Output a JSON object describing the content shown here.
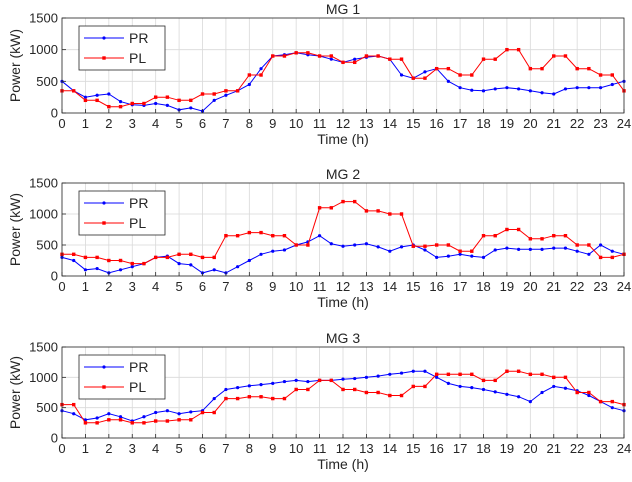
{
  "figure": {
    "colors": {
      "PR": "#0000ff",
      "PL": "#ff0000",
      "axis": "#262626",
      "grid": "#d9d9d9"
    }
  },
  "chart_data": [
    {
      "type": "line",
      "title": "MG 1",
      "xlabel": "Time (h)",
      "ylabel": "Power (kW)",
      "xlim": [
        0,
        24
      ],
      "ylim": [
        0,
        1500
      ],
      "xticks": [
        "0",
        "1",
        "2",
        "3",
        "4",
        "5",
        "6",
        "7",
        "8",
        "9",
        "10",
        "11",
        "12",
        "13",
        "14",
        "15",
        "16",
        "17",
        "18",
        "19",
        "20",
        "21",
        "22",
        "23",
        "24"
      ],
      "yticks": [
        "0",
        "500",
        "1000",
        "1500"
      ],
      "grid": true,
      "legend": "top-left",
      "x": [
        0,
        0.5,
        1,
        1.5,
        2,
        2.5,
        3,
        3.5,
        4,
        4.5,
        5,
        5.5,
        6,
        6.5,
        7,
        7.5,
        8,
        8.5,
        9,
        9.5,
        10,
        10.5,
        11,
        11.5,
        12,
        12.5,
        13,
        13.5,
        14,
        14.5,
        15,
        15.5,
        16,
        16.5,
        17,
        17.5,
        18,
        18.5,
        19,
        19.5,
        20,
        20.5,
        21,
        21.5,
        22,
        22.5,
        23,
        23.5,
        24
      ],
      "series": [
        {
          "name": "PR",
          "values": [
            500,
            350,
            250,
            280,
            300,
            180,
            130,
            120,
            150,
            120,
            50,
            80,
            30,
            200,
            280,
            350,
            450,
            700,
            900,
            920,
            950,
            920,
            900,
            850,
            800,
            850,
            880,
            900,
            850,
            600,
            550,
            650,
            700,
            500,
            400,
            360,
            350,
            380,
            400,
            380,
            350,
            320,
            300,
            380,
            400,
            400,
            400,
            450,
            500
          ]
        },
        {
          "name": "PL",
          "values": [
            350,
            350,
            200,
            200,
            100,
            100,
            150,
            150,
            250,
            250,
            200,
            200,
            300,
            300,
            350,
            350,
            600,
            600,
            900,
            900,
            950,
            950,
            900,
            900,
            800,
            800,
            900,
            900,
            850,
            850,
            550,
            550,
            700,
            700,
            600,
            600,
            850,
            850,
            1000,
            1000,
            700,
            700,
            900,
            900,
            700,
            700,
            600,
            600,
            350
          ]
        }
      ]
    },
    {
      "type": "line",
      "title": "MG 2",
      "xlabel": "Time (h)",
      "ylabel": "Power (kW)",
      "xlim": [
        0,
        24
      ],
      "ylim": [
        0,
        1500
      ],
      "xticks": [
        "0",
        "1",
        "2",
        "3",
        "4",
        "5",
        "6",
        "7",
        "8",
        "9",
        "10",
        "11",
        "12",
        "13",
        "14",
        "15",
        "16",
        "17",
        "18",
        "19",
        "20",
        "21",
        "22",
        "23",
        "24"
      ],
      "yticks": [
        "0",
        "500",
        "1000",
        "1500"
      ],
      "grid": true,
      "legend": "top-left",
      "x": [
        0,
        0.5,
        1,
        1.5,
        2,
        2.5,
        3,
        3.5,
        4,
        4.5,
        5,
        5.5,
        6,
        6.5,
        7,
        7.5,
        8,
        8.5,
        9,
        9.5,
        10,
        10.5,
        11,
        11.5,
        12,
        12.5,
        13,
        13.5,
        14,
        14.5,
        15,
        15.5,
        16,
        16.5,
        17,
        17.5,
        18,
        18.5,
        19,
        19.5,
        20,
        20.5,
        21,
        21.5,
        22,
        22.5,
        23,
        23.5,
        24
      ],
      "series": [
        {
          "name": "PR",
          "values": [
            300,
            250,
            100,
            120,
            50,
            100,
            150,
            200,
            300,
            320,
            200,
            180,
            50,
            100,
            50,
            150,
            250,
            350,
            400,
            420,
            500,
            550,
            650,
            520,
            480,
            500,
            520,
            470,
            400,
            470,
            500,
            420,
            300,
            320,
            350,
            320,
            300,
            420,
            450,
            430,
            430,
            430,
            450,
            450,
            400,
            350,
            500,
            400,
            350
          ]
        },
        {
          "name": "PL",
          "values": [
            350,
            350,
            300,
            300,
            250,
            250,
            200,
            200,
            300,
            300,
            350,
            350,
            300,
            300,
            650,
            650,
            700,
            700,
            650,
            650,
            500,
            500,
            1100,
            1100,
            1200,
            1200,
            1050,
            1050,
            1000,
            1000,
            480,
            480,
            500,
            500,
            400,
            400,
            650,
            650,
            750,
            750,
            600,
            600,
            650,
            650,
            500,
            500,
            300,
            300,
            350
          ]
        }
      ]
    },
    {
      "type": "line",
      "title": "MG 3",
      "xlabel": "Time (h)",
      "ylabel": "Power (kW)",
      "xlim": [
        0,
        24
      ],
      "ylim": [
        0,
        1500
      ],
      "xticks": [
        "0",
        "1",
        "2",
        "3",
        "4",
        "5",
        "6",
        "7",
        "8",
        "9",
        "10",
        "11",
        "12",
        "13",
        "14",
        "15",
        "16",
        "17",
        "18",
        "19",
        "20",
        "21",
        "22",
        "23",
        "24"
      ],
      "yticks": [
        "0",
        "500",
        "1000",
        "1500"
      ],
      "grid": true,
      "legend": "top-left",
      "x": [
        0,
        0.5,
        1,
        1.5,
        2,
        2.5,
        3,
        3.5,
        4,
        4.5,
        5,
        5.5,
        6,
        6.5,
        7,
        7.5,
        8,
        8.5,
        9,
        9.5,
        10,
        10.5,
        11,
        11.5,
        12,
        12.5,
        13,
        13.5,
        14,
        14.5,
        15,
        15.5,
        16,
        16.5,
        17,
        17.5,
        18,
        18.5,
        19,
        19.5,
        20,
        20.5,
        21,
        21.5,
        22,
        22.5,
        23,
        23.5,
        24
      ],
      "series": [
        {
          "name": "PR",
          "values": [
            450,
            400,
            300,
            330,
            400,
            350,
            280,
            350,
            420,
            450,
            400,
            430,
            450,
            650,
            800,
            830,
            860,
            880,
            900,
            930,
            950,
            930,
            950,
            950,
            970,
            980,
            1000,
            1020,
            1050,
            1070,
            1100,
            1100,
            1000,
            900,
            850,
            830,
            800,
            760,
            720,
            680,
            600,
            750,
            850,
            820,
            780,
            700,
            600,
            500,
            450
          ]
        },
        {
          "name": "PL",
          "values": [
            550,
            550,
            250,
            250,
            300,
            300,
            250,
            250,
            280,
            280,
            300,
            300,
            420,
            420,
            650,
            650,
            680,
            680,
            650,
            650,
            800,
            800,
            950,
            950,
            800,
            800,
            750,
            750,
            700,
            700,
            850,
            850,
            1050,
            1050,
            1050,
            1050,
            950,
            950,
            1100,
            1100,
            1050,
            1050,
            1000,
            1000,
            750,
            750,
            600,
            600,
            550
          ]
        }
      ]
    }
  ]
}
